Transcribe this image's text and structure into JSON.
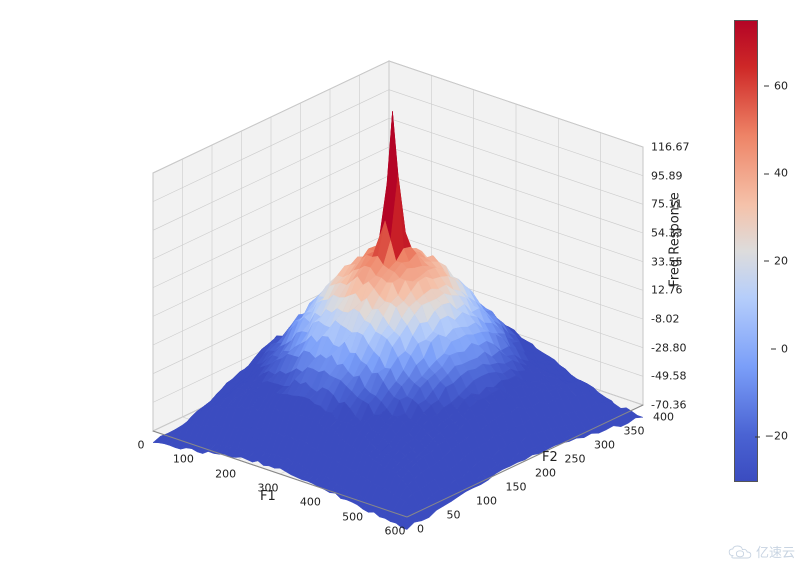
{
  "chart": {
    "type": "3d-surface",
    "colormap": "coolwarm",
    "background_color": "#ffffff",
    "pane_color": "#f2f2f2",
    "grid_color": "#cccccc",
    "edge_color": "#bfbfbf",
    "axis_label_fontsize": 13,
    "tick_label_fontsize": 11,
    "x_axis": {
      "label": "F1",
      "range": [
        0,
        600
      ],
      "ticks": [
        0,
        100,
        200,
        300,
        400,
        500,
        600
      ]
    },
    "y_axis": {
      "label": "F2",
      "range": [
        0,
        400
      ],
      "ticks": [
        0,
        50,
        100,
        150,
        200,
        250,
        300,
        350,
        400
      ]
    },
    "z_axis": {
      "label": "Freq Response",
      "ticks": [
        -70.36,
        -49.58,
        -28.8,
        -8.02,
        12.76,
        33.55,
        54.33,
        75.11,
        95.89,
        116.67
      ]
    },
    "colorbar": {
      "ticks": [
        -20,
        0,
        20,
        40,
        60
      ],
      "range": [
        -30,
        75
      ],
      "colors_stops": [
        {
          "t": 0.0,
          "c": "#3b4cc0"
        },
        {
          "t": 0.1,
          "c": "#4a63d3"
        },
        {
          "t": 0.25,
          "c": "#7b9ff9"
        },
        {
          "t": 0.4,
          "c": "#b6cefa"
        },
        {
          "t": 0.5,
          "c": "#dddcdc"
        },
        {
          "t": 0.6,
          "c": "#f5c2aa"
        },
        {
          "t": 0.75,
          "c": "#ee8467"
        },
        {
          "t": 0.9,
          "c": "#ce2827"
        },
        {
          "t": 1.0,
          "c": "#b40426"
        }
      ]
    },
    "surface": {
      "grid_nx": 46,
      "grid_ny": 32,
      "peak_center": {
        "fx": 0.48,
        "fy": 0.5
      },
      "base_plateau_halfwidth": 0.4,
      "plateau_z": 0.05,
      "mound_sigma": 0.24,
      "mound_height": 0.6,
      "spike_sigma": 0.018,
      "spike_height": 0.55,
      "floor_z": -0.05,
      "noise_amp": 0.03
    }
  },
  "watermark": {
    "text": "亿速云"
  }
}
